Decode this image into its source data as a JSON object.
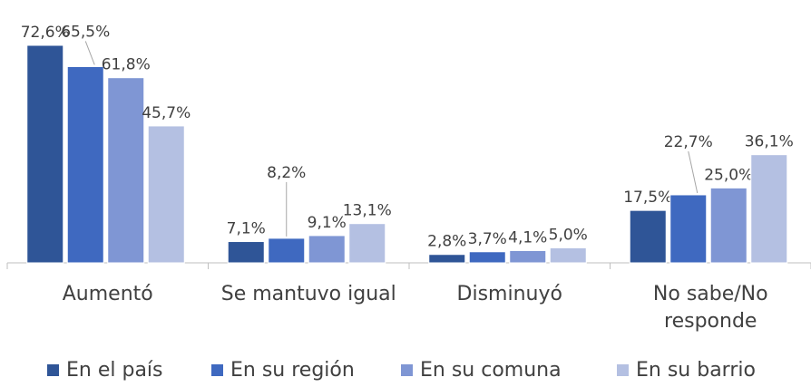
{
  "chart_data": {
    "type": "bar",
    "categories": [
      "Aumentó",
      "Se mantuvo igual",
      "Disminuyó",
      "No sabe/No responde"
    ],
    "series": [
      {
        "name": "En el país",
        "color": "#2f5597",
        "values": [
          72.6,
          7.1,
          2.8,
          17.5
        ],
        "value_labels": [
          "72,6%",
          "7,1%",
          "2,8%",
          "17,5%"
        ]
      },
      {
        "name": "En su región",
        "color": "#3f69c0",
        "values": [
          65.5,
          8.2,
          3.7,
          22.7
        ],
        "value_labels": [
          "65,5%",
          "8,2%",
          "3,7%",
          "22,7%"
        ]
      },
      {
        "name": "En su comuna",
        "color": "#7f96d4",
        "values": [
          61.8,
          9.1,
          4.1,
          25.0
        ],
        "value_labels": [
          "61,8%",
          "9,1%",
          "4,1%",
          "25,0%"
        ]
      },
      {
        "name": "En su barrio",
        "color": "#b4c0e2",
        "values": [
          45.7,
          13.1,
          5.0,
          36.1
        ],
        "value_labels": [
          "45,7%",
          "13,1%",
          "5,0%",
          "36,1%"
        ]
      }
    ]
  }
}
